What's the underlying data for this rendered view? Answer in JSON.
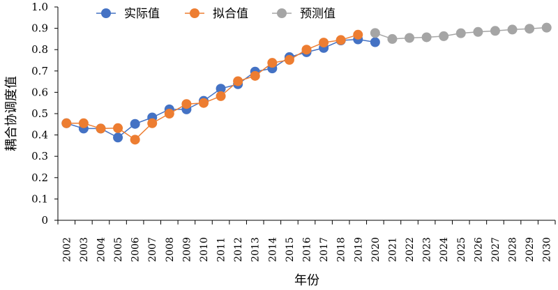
{
  "chart_data": {
    "type": "line",
    "xlabel": "年份",
    "ylabel": "耦合协调度值",
    "ylim": [
      0,
      1.0
    ],
    "yticks": [
      "0",
      "0.1",
      "0.2",
      "0.3",
      "0.4",
      "0.5",
      "0.6",
      "0.7",
      "0.8",
      "0.9",
      "1.0"
    ],
    "categories": [
      "2002",
      "2003",
      "2004",
      "2005",
      "2006",
      "2007",
      "2008",
      "2009",
      "2010",
      "2011",
      "2012",
      "2013",
      "2014",
      "2015",
      "2016",
      "2017",
      "2018",
      "2019",
      "2020",
      "2021",
      "2022",
      "2023",
      "2024",
      "2025",
      "2026",
      "2027",
      "2028",
      "2029",
      "2030"
    ],
    "grid": false,
    "legend_position": "top",
    "series": [
      {
        "name": "实际值",
        "color": "#4472C4",
        "values": [
          0.455,
          0.43,
          0.43,
          0.388,
          0.452,
          0.482,
          0.52,
          0.52,
          0.56,
          0.617,
          0.638,
          0.697,
          0.712,
          0.765,
          0.788,
          0.808,
          0.843,
          0.848,
          0.835,
          null,
          null,
          null,
          null,
          null,
          null,
          null,
          null,
          null,
          null
        ]
      },
      {
        "name": "拟合值",
        "color": "#ED7D31",
        "values": [
          0.455,
          0.455,
          0.43,
          0.432,
          0.378,
          0.455,
          0.5,
          0.545,
          0.55,
          0.582,
          0.652,
          0.677,
          0.738,
          0.752,
          0.8,
          0.833,
          0.845,
          0.87,
          null,
          null,
          null,
          null,
          null,
          null,
          null,
          null,
          null,
          null,
          null
        ]
      },
      {
        "name": "预测值",
        "color": "#A5A5A5",
        "values": [
          null,
          null,
          null,
          null,
          null,
          null,
          null,
          null,
          null,
          null,
          null,
          null,
          null,
          null,
          null,
          null,
          null,
          null,
          0.878,
          0.85,
          0.855,
          0.858,
          0.863,
          0.877,
          0.883,
          0.888,
          0.894,
          0.898,
          0.903
        ]
      }
    ]
  }
}
